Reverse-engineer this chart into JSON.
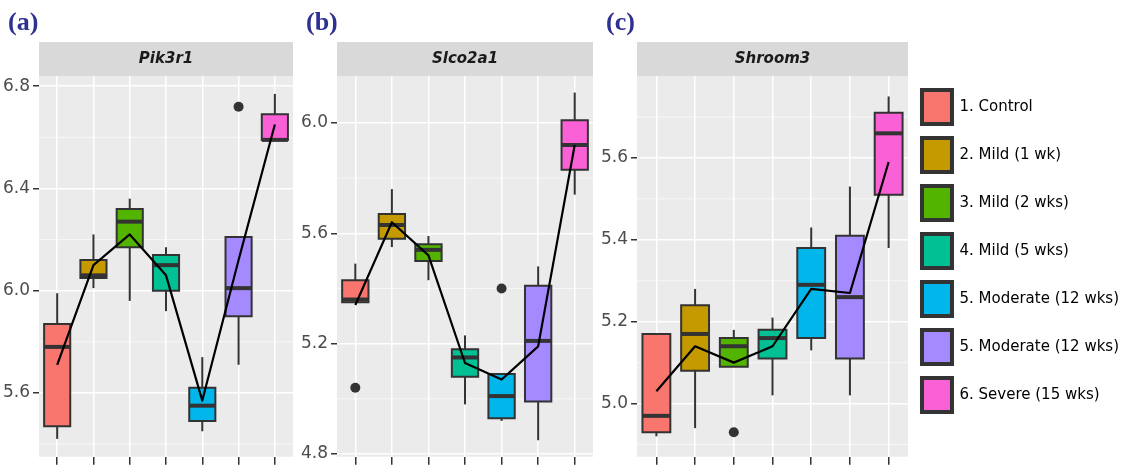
{
  "chart_data": [
    {
      "type": "box",
      "title": "(a)",
      "subtitle": "Pik3r1",
      "categories": [
        null,
        null,
        null,
        null,
        null,
        null,
        null
      ],
      "series": [
        {
          "type": "box",
          "color": "#f8766d",
          "boxes": [
            {
              "low": 5.42,
              "q1": 5.47,
              "median": 5.78,
              "q3": 5.87,
              "high": 5.99
            },
            null,
            null,
            null,
            null,
            null,
            null
          ]
        },
        {
          "type": "box",
          "color": "#c49a00",
          "boxes": [
            null,
            {
              "low": 6.01,
              "q1": 6.05,
              "median": 6.06,
              "q3": 6.12,
              "high": 6.22
            },
            null,
            null,
            null,
            null,
            null
          ]
        },
        {
          "type": "box",
          "color": "#53b400",
          "boxes": [
            null,
            null,
            {
              "low": 5.96,
              "q1": 6.17,
              "median": 6.27,
              "q3": 6.32,
              "high": 6.36
            },
            null,
            null,
            null,
            null
          ]
        },
        {
          "type": "box",
          "color": "#00c094",
          "boxes": [
            null,
            null,
            null,
            {
              "low": 5.92,
              "q1": 6.0,
              "median": 6.1,
              "q3": 6.14,
              "high": 6.17
            },
            null,
            null,
            null
          ]
        },
        {
          "type": "box",
          "color": "#00b6eb",
          "boxes": [
            null,
            null,
            null,
            null,
            {
              "low": 5.45,
              "q1": 5.49,
              "median": 5.55,
              "q3": 5.62,
              "high": 5.74
            },
            null,
            null
          ]
        },
        {
          "type": "box",
          "color": "#a58aff",
          "boxes": [
            null,
            null,
            null,
            null,
            null,
            {
              "low": 5.71,
              "q1": 5.9,
              "median": 6.01,
              "q3": 6.21,
              "high": 6.21,
              "outliers": [
                6.72
              ]
            },
            null
          ]
        },
        {
          "type": "box",
          "color": "#fb61d7",
          "boxes": [
            null,
            null,
            null,
            null,
            null,
            null,
            {
              "low": 6.59,
              "q1": 6.59,
              "median": 6.59,
              "q3": 6.69,
              "high": 6.77
            }
          ]
        },
        {
          "type": "line",
          "color": "#000000",
          "values": [
            5.71,
            6.1,
            6.22,
            6.06,
            5.57,
            6.12,
            6.65
          ]
        }
      ],
      "ylim": [
        5.35,
        6.84
      ],
      "yticks": [
        {
          "value": 5.6,
          "label": "5.6"
        },
        {
          "value": 6.0,
          "label": "6.0"
        },
        {
          "value": 6.4,
          "label": "6.4"
        },
        {
          "value": 6.8,
          "label": "6.8"
        }
      ],
      "grid": true,
      "tick_labels": "y"
    },
    {
      "type": "box",
      "title": "(b)",
      "subtitle": "Slco2a1",
      "categories": [
        null,
        null,
        null,
        null,
        null,
        null,
        null
      ],
      "series": [
        {
          "type": "box",
          "color": "#f8766d",
          "boxes": [
            {
              "low": 5.35,
              "q1": 5.35,
              "median": 5.36,
              "q3": 5.43,
              "high": 5.49,
              "outliers": [
                5.04
              ]
            },
            null,
            null,
            null,
            null,
            null,
            null
          ]
        },
        {
          "type": "box",
          "color": "#c49a00",
          "boxes": [
            null,
            {
              "low": 5.55,
              "q1": 5.58,
              "median": 5.63,
              "q3": 5.67,
              "high": 5.76
            },
            null,
            null,
            null,
            null,
            null
          ]
        },
        {
          "type": "box",
          "color": "#53b400",
          "boxes": [
            null,
            null,
            {
              "low": 5.43,
              "q1": 5.5,
              "median": 5.54,
              "q3": 5.56,
              "high": 5.59
            },
            null,
            null,
            null,
            null
          ]
        },
        {
          "type": "box",
          "color": "#00c094",
          "boxes": [
            null,
            null,
            null,
            {
              "low": 4.98,
              "q1": 5.08,
              "median": 5.15,
              "q3": 5.18,
              "high": 5.23
            },
            null,
            null,
            null
          ]
        },
        {
          "type": "box",
          "color": "#00b6eb",
          "boxes": [
            null,
            null,
            null,
            null,
            {
              "low": 4.92,
              "q1": 4.93,
              "median": 5.01,
              "q3": 5.09,
              "high": 5.09,
              "outliers": [
                5.4
              ]
            },
            null,
            null
          ]
        },
        {
          "type": "box",
          "color": "#a58aff",
          "boxes": [
            null,
            null,
            null,
            null,
            null,
            {
              "low": 4.85,
              "q1": 4.99,
              "median": 5.21,
              "q3": 5.41,
              "high": 5.48
            },
            null
          ]
        },
        {
          "type": "box",
          "color": "#fb61d7",
          "boxes": [
            null,
            null,
            null,
            null,
            null,
            null,
            {
              "low": 5.74,
              "q1": 5.83,
              "median": 5.92,
              "q3": 6.01,
              "high": 6.11
            }
          ]
        },
        {
          "type": "line",
          "color": "#000000",
          "values": [
            5.34,
            5.64,
            5.52,
            5.13,
            5.07,
            5.19,
            5.92
          ]
        }
      ],
      "ylim": [
        4.79,
        6.17
      ],
      "yticks": [
        {
          "value": 4.8,
          "label": "4.8"
        },
        {
          "value": 5.2,
          "label": "5.2"
        },
        {
          "value": 5.6,
          "label": "5.6"
        },
        {
          "value": 6.0,
          "label": "6.0"
        }
      ],
      "grid": true,
      "tick_labels": "y"
    },
    {
      "type": "box",
      "title": "(c)",
      "subtitle": "Shroom3",
      "categories": [
        null,
        null,
        null,
        null,
        null,
        null,
        null
      ],
      "series": [
        {
          "type": "box",
          "name": "1. Control",
          "color": "#f8766d",
          "boxes": [
            {
              "low": 4.92,
              "q1": 4.93,
              "median": 4.97,
              "q3": 5.17,
              "high": 5.17
            },
            null,
            null,
            null,
            null,
            null,
            null
          ]
        },
        {
          "type": "box",
          "name": "2. Mild (1 wk)",
          "color": "#c49a00",
          "boxes": [
            null,
            {
              "low": 4.94,
              "q1": 5.08,
              "median": 5.17,
              "q3": 5.24,
              "high": 5.28
            },
            null,
            null,
            null,
            null,
            null
          ]
        },
        {
          "type": "box",
          "name": "3. Mild (2 wks)",
          "color": "#53b400",
          "boxes": [
            null,
            null,
            {
              "low": 5.09,
              "q1": 5.09,
              "median": 5.14,
              "q3": 5.16,
              "high": 5.18,
              "outliers": [
                4.93
              ]
            },
            null,
            null,
            null,
            null
          ]
        },
        {
          "type": "box",
          "name": "4. Mild (5 wks)",
          "color": "#00c094",
          "boxes": [
            null,
            null,
            null,
            {
              "low": 5.02,
              "q1": 5.11,
              "median": 5.16,
              "q3": 5.18,
              "high": 5.21
            },
            null,
            null,
            null
          ]
        },
        {
          "type": "box",
          "name": "5. Moderate (12 wks)",
          "color": "#00b6eb",
          "boxes": [
            null,
            null,
            null,
            null,
            {
              "low": 5.13,
              "q1": 5.16,
              "median": 5.29,
              "q3": 5.38,
              "high": 5.43
            },
            null,
            null
          ]
        },
        {
          "type": "box",
          "name": "5. Moderate (12 wks)",
          "color": "#a58aff",
          "boxes": [
            null,
            null,
            null,
            null,
            null,
            {
              "low": 5.02,
              "q1": 5.11,
              "median": 5.26,
              "q3": 5.41,
              "high": 5.53
            },
            null
          ]
        },
        {
          "type": "box",
          "name": "6. Severe (15 wks)",
          "color": "#fb61d7",
          "boxes": [
            null,
            null,
            null,
            null,
            null,
            null,
            {
              "low": 5.38,
              "q1": 5.51,
              "median": 5.66,
              "q3": 5.71,
              "high": 5.75
            }
          ]
        },
        {
          "type": "line",
          "color": "#000000",
          "values": [
            5.03,
            5.14,
            5.1,
            5.14,
            5.28,
            5.27,
            5.59
          ]
        }
      ],
      "ylim": [
        4.87,
        5.8
      ],
      "yticks": [
        {
          "value": 5.0,
          "label": "5.0"
        },
        {
          "value": 5.2,
          "label": "5.2"
        },
        {
          "value": 5.4,
          "label": "5.4"
        },
        {
          "value": 5.6,
          "label": "5.6"
        }
      ],
      "grid": true,
      "tick_labels": "y",
      "legend": "right"
    }
  ]
}
